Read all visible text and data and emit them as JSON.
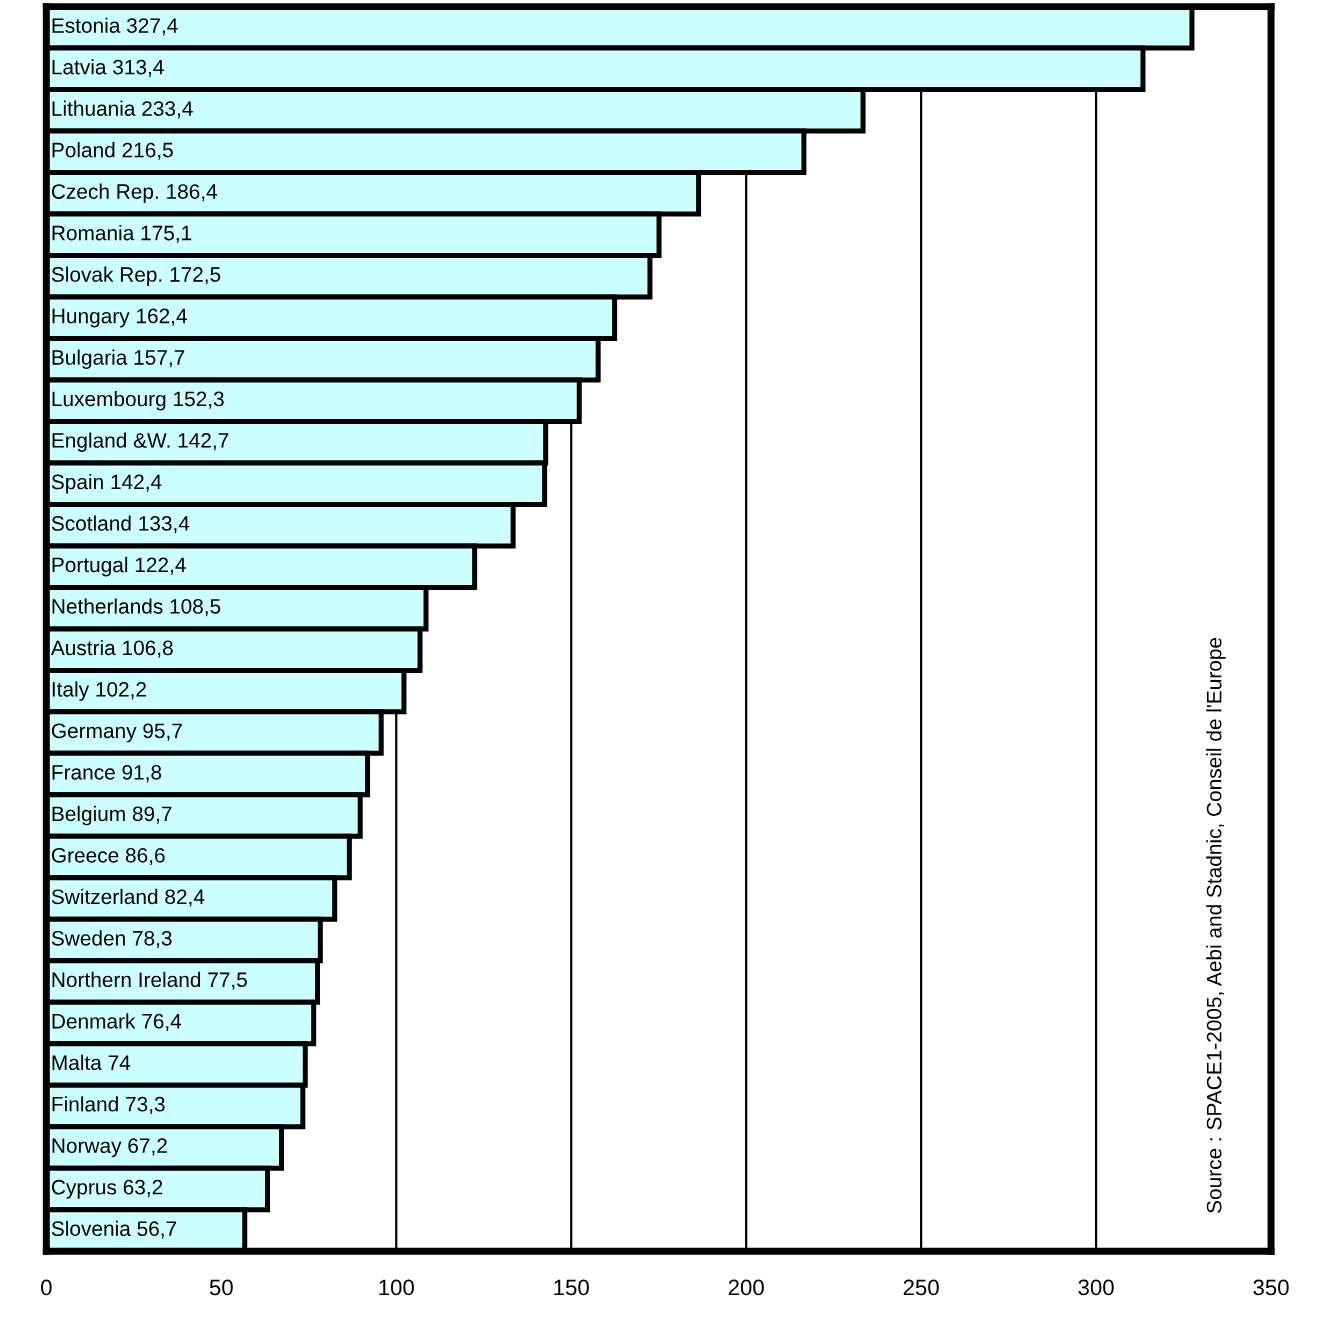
{
  "chart_data": {
    "type": "bar",
    "orientation": "horizontal",
    "categories": [
      "Estonia",
      "Latvia",
      "Lithuania",
      "Poland",
      "Czech Rep.",
      "Romania",
      "Slovak Rep.",
      "Hungary",
      "Bulgaria",
      "Luxembourg",
      "England &W.",
      "Spain",
      "Scotland",
      "Portugal",
      "Netherlands",
      "Austria",
      "Italy",
      "Germany",
      "France",
      "Belgium",
      "Greece",
      "Switzerland",
      "Sweden",
      "Northern Ireland",
      "Denmark",
      "Malta",
      "Finland",
      "Norway",
      "Cyprus",
      "Slovenia"
    ],
    "values": [
      327.4,
      313.4,
      233.4,
      216.5,
      186.4,
      175.1,
      172.5,
      162.4,
      157.7,
      152.3,
      142.7,
      142.4,
      133.4,
      122.4,
      108.5,
      106.8,
      102.2,
      95.7,
      91.8,
      89.7,
      86.6,
      82.4,
      78.3,
      77.5,
      76.4,
      74,
      73.3,
      67.2,
      63.2,
      56.7
    ],
    "value_labels": [
      "327,4",
      "313,4",
      "233,4",
      "216,5",
      "186,4",
      "175,1",
      "172,5",
      "162,4",
      "157,7",
      "152,3",
      "142,7",
      "142,4",
      "133,4",
      "122,4",
      "108,5",
      "106,8",
      "102,2",
      "95,7",
      "91,8",
      "89,7",
      "86,6",
      "82,4",
      "78,3",
      "77,5",
      "76,4",
      "74",
      "73,3",
      "67,2",
      "63,2",
      "56,7"
    ],
    "color": "#ccffff",
    "xlim": [
      0,
      350
    ],
    "xticks": [
      0,
      50,
      100,
      150,
      200,
      250,
      300,
      350
    ],
    "grid": "x",
    "annotations": [
      "Source : SPACE1-2005, Aebi and Stadnic, Conseil de l'Europe"
    ]
  }
}
